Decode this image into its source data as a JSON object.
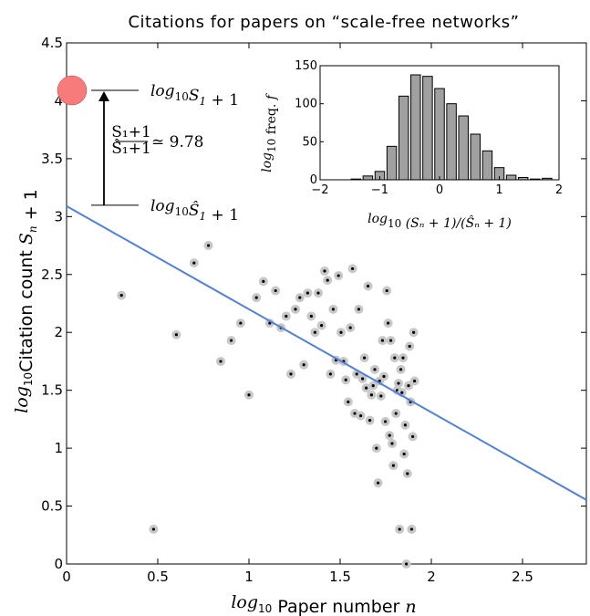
{
  "chart_data": {
    "type": "scatter",
    "title": "Citations for papers on “scale-free networks”",
    "xlabel": {
      "prefix": "log",
      "sub": "10",
      "text": " Paper number ",
      "var": "n"
    },
    "ylabel": {
      "prefix": "log",
      "sub": "10",
      "text": "Citation count ",
      "var": "S",
      "varsub": "n",
      "suffix": " + 1"
    },
    "xlim": [
      0,
      2.85
    ],
    "ylim": [
      0,
      4.5
    ],
    "xticks": [
      "0",
      "0.5",
      "1",
      "1.5",
      "2",
      "2.5"
    ],
    "yticks": [
      "0",
      "0.5",
      "1",
      "1.5",
      "2",
      "2.5",
      "3",
      "3.5",
      "4",
      "4.5"
    ],
    "colors": {
      "fit_line": "#5080e0",
      "point_halo": "#c8c8c8",
      "point_core": "#000000",
      "top_marker": "#f77b7b",
      "hist_bar": "#a0a0a0"
    },
    "top_point": {
      "x": 0,
      "y": 4.09
    },
    "fit_line": {
      "intercept": 3.09,
      "slope": -0.89
    },
    "annotations": {
      "top_label": {
        "prefix": "log",
        "sub": "10",
        "var": "S",
        "varsub": "1",
        "suffix": " + 1"
      },
      "fit_label": {
        "prefix": "log",
        "sub": "10",
        "var": "Ŝ",
        "varsub": "1",
        "suffix": " + 1"
      },
      "ratio_num": "S₁+1",
      "ratio_den": "Ŝ₁+1",
      "ratio_value": "≃ 9.78"
    },
    "series": [
      {
        "x": [
          0.301,
          0.477,
          0.602,
          0.699,
          0.778,
          0.845,
          0.903,
          0.954,
          1.0,
          1.041,
          1.079,
          1.114,
          1.146,
          1.176,
          1.204,
          1.23,
          1.255,
          1.279,
          1.301,
          1.322,
          1.342,
          1.362,
          1.38,
          1.398,
          1.415,
          1.431,
          1.447,
          1.462,
          1.477,
          1.491,
          1.505,
          1.519,
          1.531,
          1.544,
          1.556,
          1.568,
          1.58,
          1.591,
          1.602,
          1.613,
          1.623,
          1.633,
          1.643,
          1.653,
          1.663,
          1.672,
          1.681,
          1.69,
          1.699,
          1.708,
          1.716,
          1.724,
          1.732,
          1.74,
          1.748,
          1.756,
          1.763,
          1.771,
          1.778,
          1.785,
          1.792,
          1.799,
          1.806,
          1.813,
          1.82,
          1.826,
          1.833,
          1.839,
          1.845,
          1.851,
          1.857,
          1.863,
          1.869,
          1.875,
          1.881,
          1.886,
          1.892,
          1.898,
          1.903,
          1.908
        ],
        "y": [
          2.32,
          0.3,
          1.98,
          2.6,
          2.75,
          1.75,
          1.93,
          2.08,
          1.46,
          2.3,
          2.44,
          2.08,
          2.36,
          2.04,
          2.14,
          1.64,
          2.2,
          2.3,
          1.72,
          2.34,
          2.14,
          2.0,
          2.34,
          2.06,
          2.53,
          2.45,
          1.64,
          2.2,
          1.76,
          2.49,
          2.0,
          1.75,
          1.59,
          1.4,
          2.04,
          2.55,
          1.3,
          1.64,
          2.2,
          1.28,
          1.6,
          1.78,
          1.52,
          2.4,
          1.24,
          1.46,
          1.54,
          1.68,
          1.0,
          0.7,
          1.58,
          1.45,
          1.93,
          1.62,
          1.23,
          2.36,
          2.08,
          1.11,
          1.93,
          1.04,
          0.85,
          1.78,
          1.3,
          1.5,
          1.56,
          0.3,
          1.68,
          1.48,
          1.78,
          0.95,
          1.2,
          0.0,
          0.78,
          1.54,
          1.88,
          1.4,
          0.3,
          1.1,
          2.0,
          1.58
        ]
      }
    ],
    "inset": {
      "type": "bar",
      "ylabel": {
        "prefix": "log",
        "sub": "10",
        "text": " freq. ",
        "var": "f"
      },
      "xlabel": {
        "prefix": "log",
        "sub": "10",
        "expr": " (Sₙ + 1)/(Ŝₙ + 1)"
      },
      "xlim": [
        -2,
        2
      ],
      "ylim": [
        0,
        150
      ],
      "xticks": [
        "−2",
        "−1",
        "0",
        "1",
        "2"
      ],
      "yticks": [
        "0",
        "50",
        "100",
        "150"
      ],
      "bin_centers": [
        -1.4,
        -1.2,
        -1.0,
        -0.8,
        -0.6,
        -0.4,
        -0.2,
        0.0,
        0.2,
        0.4,
        0.6,
        0.8,
        1.0,
        1.2,
        1.4,
        1.6,
        1.8
      ],
      "values": [
        1,
        5,
        11,
        44,
        110,
        138,
        136,
        120,
        100,
        84,
        60,
        38,
        16,
        6,
        3,
        1,
        2
      ]
    }
  }
}
